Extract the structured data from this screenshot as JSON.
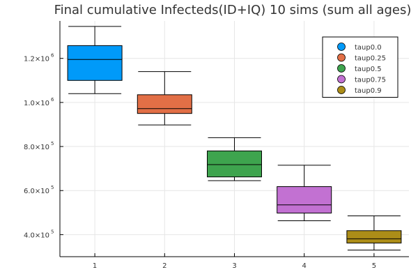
{
  "chart_data": {
    "type": "box",
    "title": "Final cumulative Infecteds(ID+IQ) 10 sims (sum all ages)",
    "xlabel": "",
    "ylabel": "",
    "xlim": [
      0.5,
      5.5
    ],
    "ylim": [
      300000,
      1370000
    ],
    "grid": true,
    "legend_position": "top-right",
    "x_ticks": [
      {
        "value": 1,
        "label": "1"
      },
      {
        "value": 2,
        "label": "2"
      },
      {
        "value": 3,
        "label": "3"
      },
      {
        "value": 4,
        "label": "4"
      },
      {
        "value": 5,
        "label": "5"
      }
    ],
    "y_ticks": [
      {
        "value": 400000,
        "mantissa": "4.0×10",
        "exponent": "5"
      },
      {
        "value": 600000,
        "mantissa": "6.0×10",
        "exponent": "5"
      },
      {
        "value": 800000,
        "mantissa": "8.0×10",
        "exponent": "5"
      },
      {
        "value": 1000000,
        "mantissa": "1.0×10",
        "exponent": "6"
      },
      {
        "value": 1200000,
        "mantissa": "1.2×10",
        "exponent": "6"
      }
    ],
    "series": [
      {
        "name": "taup0.0",
        "x": 1,
        "color": "#009AF9",
        "min": 1040000,
        "q1": 1100000,
        "median": 1195000,
        "q3": 1258000,
        "max": 1345000
      },
      {
        "name": "taup0.25",
        "x": 2,
        "color": "#E26F46",
        "min": 898000,
        "q1": 950000,
        "median": 972000,
        "q3": 1035000,
        "max": 1140000
      },
      {
        "name": "taup0.5",
        "x": 3,
        "color": "#3EA44E",
        "min": 645000,
        "q1": 662000,
        "median": 718000,
        "q3": 780000,
        "max": 840000
      },
      {
        "name": "taup0.75",
        "x": 4,
        "color": "#C271D2",
        "min": 463000,
        "q1": 498000,
        "median": 535000,
        "q3": 618000,
        "max": 715000
      },
      {
        "name": "taup0.9",
        "x": 5,
        "color": "#AC8D18",
        "min": 330000,
        "q1": 362000,
        "median": 381000,
        "q3": 418000,
        "max": 485000
      }
    ]
  }
}
